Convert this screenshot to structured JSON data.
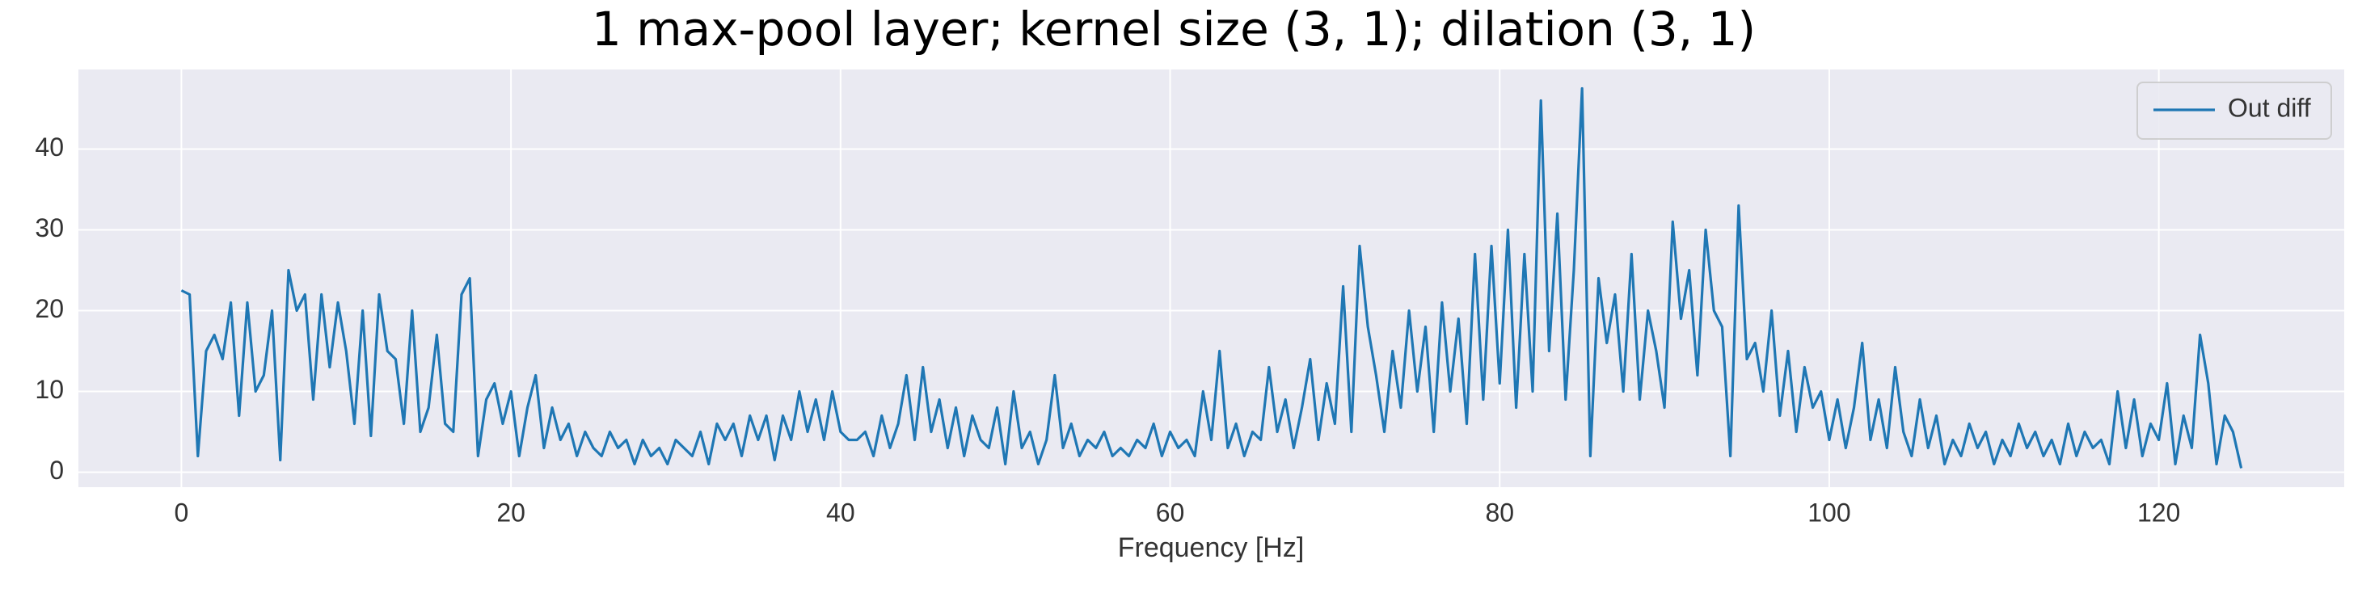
{
  "chart_data": {
    "type": "line",
    "title": "1 max-pool layer; kernel size (3, 1); dilation (3, 1)",
    "x_label": "Frequency [Hz]",
    "x": [
      0,
      0.5,
      1,
      1.5,
      2,
      2.5,
      3,
      3.5,
      4,
      4.5,
      5,
      5.5,
      6,
      6.5,
      7,
      7.5,
      8,
      8.5,
      9,
      9.5,
      10,
      10.5,
      11,
      11.5,
      12,
      12.5,
      13,
      13.5,
      14,
      14.5,
      15,
      15.5,
      16,
      16.5,
      17,
      17.5,
      18,
      18.5,
      19,
      19.5,
      20,
      20.5,
      21,
      21.5,
      22,
      22.5,
      23,
      23.5,
      24,
      24.5,
      25,
      25.5,
      26,
      26.5,
      27,
      27.5,
      28,
      28.5,
      29,
      29.5,
      30,
      30.5,
      31,
      31.5,
      32,
      32.5,
      33,
      33.5,
      34,
      34.5,
      35,
      35.5,
      36,
      36.5,
      37,
      37.5,
      38,
      38.5,
      39,
      39.5,
      40,
      40.5,
      41,
      41.5,
      42,
      42.5,
      43,
      43.5,
      44,
      44.5,
      45,
      45.5,
      46,
      46.5,
      47,
      47.5,
      48,
      48.5,
      49,
      49.5,
      50,
      50.5,
      51,
      51.5,
      52,
      52.5,
      53,
      53.5,
      54,
      54.5,
      55,
      55.5,
      56,
      56.5,
      57,
      57.5,
      58,
      58.5,
      59,
      59.5,
      60,
      60.5,
      61,
      61.5,
      62,
      62.5,
      63,
      63.5,
      64,
      64.5,
      65,
      65.5,
      66,
      66.5,
      67,
      67.5,
      68,
      68.5,
      69,
      69.5,
      70,
      70.5,
      71,
      71.5,
      72,
      72.5,
      73,
      73.5,
      74,
      74.5,
      75,
      75.5,
      76,
      76.5,
      77,
      77.5,
      78,
      78.5,
      79,
      79.5,
      80,
      80.5,
      81,
      81.5,
      82,
      82.5,
      83,
      83.5,
      84,
      84.5,
      85,
      85.5,
      86,
      86.5,
      87,
      87.5,
      88,
      88.5,
      89,
      89.5,
      90,
      90.5,
      91,
      91.5,
      92,
      92.5,
      93,
      93.5,
      94,
      94.5,
      95,
      95.5,
      96,
      96.5,
      97,
      97.5,
      98,
      98.5,
      99,
      99.5,
      100,
      100.5,
      101,
      101.5,
      102,
      102.5,
      103,
      103.5,
      104,
      104.5,
      105,
      105.5,
      106,
      106.5,
      107,
      107.5,
      108,
      108.5,
      109,
      109.5,
      110,
      110.5,
      111,
      111.5,
      112,
      112.5,
      113,
      113.5,
      114,
      114.5,
      115,
      115.5,
      116,
      116.5,
      117,
      117.5,
      118,
      118.5,
      119,
      119.5,
      120,
      120.5,
      121,
      121.5,
      122,
      122.5,
      123,
      123.5,
      124,
      124.5,
      125
    ],
    "series": [
      {
        "name": "Out diff",
        "color": "#1f77b4",
        "values": [
          22.5,
          22,
          2,
          15,
          17,
          14,
          21,
          7,
          21,
          10,
          12,
          20,
          1.5,
          25,
          20,
          22,
          9,
          22,
          13,
          21,
          15,
          6,
          20,
          4.5,
          22,
          15,
          14,
          6,
          20,
          5,
          8,
          17,
          6,
          5,
          22,
          24,
          2,
          9,
          11,
          6,
          10,
          2,
          8,
          12,
          3,
          8,
          4,
          6,
          2,
          5,
          3,
          2,
          5,
          3,
          4,
          1,
          4,
          2,
          3,
          1,
          4,
          3,
          2,
          5,
          1,
          6,
          4,
          6,
          2,
          7,
          4,
          7,
          1.5,
          7,
          4,
          10,
          5,
          9,
          4,
          10,
          5,
          4,
          4,
          5,
          2,
          7,
          3,
          6,
          12,
          4,
          13,
          5,
          9,
          3,
          8,
          2,
          7,
          4,
          3,
          8,
          1,
          10,
          3,
          5,
          1,
          4,
          12,
          3,
          6,
          2,
          4,
          3,
          5,
          2,
          3,
          2,
          4,
          3,
          6,
          2,
          5,
          3,
          4,
          2,
          10,
          4,
          15,
          3,
          6,
          2,
          5,
          4,
          13,
          5,
          9,
          3,
          8,
          14,
          4,
          11,
          6,
          23,
          5,
          28,
          18,
          12,
          5,
          15,
          8,
          20,
          10,
          18,
          5,
          21,
          10,
          19,
          6,
          27,
          9,
          28,
          11,
          30,
          8,
          27,
          10,
          46,
          15,
          32,
          9,
          25,
          47.5,
          2,
          24,
          16,
          22,
          10,
          27,
          9,
          20,
          15,
          8,
          31,
          19,
          25,
          12,
          30,
          20,
          18,
          2,
          33,
          14,
          16,
          10,
          20,
          7,
          15,
          5,
          13,
          8,
          10,
          4,
          9,
          3,
          8,
          16,
          4,
          9,
          3,
          13,
          5,
          2,
          9,
          3,
          7,
          1,
          4,
          2,
          6,
          3,
          5,
          1,
          4,
          2,
          6,
          3,
          5,
          2,
          4,
          1,
          6,
          2,
          5,
          3,
          4,
          1,
          10,
          3,
          9,
          2,
          6,
          4,
          11,
          1,
          7,
          3,
          17,
          11,
          1,
          7,
          5,
          0.5
        ]
      }
    ],
    "xlim": [
      -6.25,
      131.25
    ],
    "ylim": [
      -1.85,
      49.85
    ],
    "xticks": [
      0,
      20,
      40,
      60,
      80,
      100,
      120
    ],
    "yticks": [
      0,
      10,
      20,
      30,
      40
    ],
    "grid": true,
    "legend": "upper right"
  }
}
